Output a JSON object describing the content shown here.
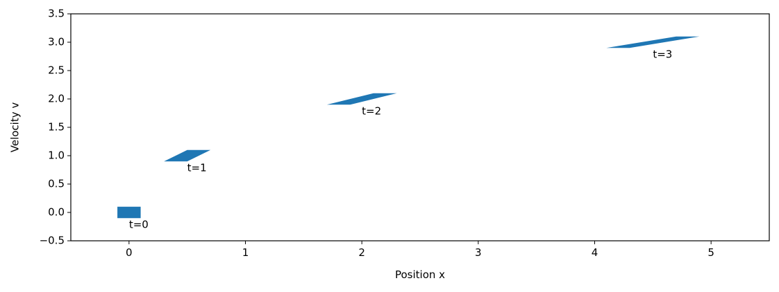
{
  "chart_data": {
    "type": "area",
    "title": "",
    "xlabel": "Position x",
    "ylabel": "Velocity v",
    "xlim": [
      -0.5,
      5.5
    ],
    "ylim": [
      -0.5,
      3.5
    ],
    "xticks": [
      0,
      1,
      2,
      3,
      4,
      5
    ],
    "xtick_labels": [
      "0",
      "1",
      "2",
      "3",
      "4",
      "5"
    ],
    "yticks": [
      -0.5,
      0.0,
      0.5,
      1.0,
      1.5,
      2.0,
      2.5,
      3.0,
      3.5
    ],
    "ytick_labels": [
      "−0.5",
      "0.0",
      "0.5",
      "1.0",
      "1.5",
      "2.0",
      "2.5",
      "3.0",
      "3.5"
    ],
    "grid": false,
    "color": "#1f77b4",
    "shapes": [
      {
        "label": "t=0",
        "t": 0,
        "vertices": [
          [
            -0.1,
            -0.1
          ],
          [
            0.1,
            -0.1
          ],
          [
            0.1,
            0.1
          ],
          [
            -0.1,
            0.1
          ]
        ],
        "label_pos": [
          0,
          -0.22
        ]
      },
      {
        "label": "t=1",
        "t": 1,
        "vertices": [
          [
            0.3,
            0.9
          ],
          [
            0.5,
            0.9
          ],
          [
            0.7,
            1.1
          ],
          [
            0.5,
            1.1
          ]
        ],
        "label_pos": [
          0.5,
          0.78
        ]
      },
      {
        "label": "t=2",
        "t": 2,
        "vertices": [
          [
            1.7,
            1.9
          ],
          [
            1.9,
            1.9
          ],
          [
            2.3,
            2.1
          ],
          [
            2.1,
            2.1
          ]
        ],
        "label_pos": [
          2.0,
          1.78
        ]
      },
      {
        "label": "t=3",
        "t": 3,
        "vertices": [
          [
            4.1,
            2.9
          ],
          [
            4.3,
            2.9
          ],
          [
            4.9,
            3.1
          ],
          [
            4.7,
            3.1
          ]
        ],
        "label_pos": [
          4.5,
          2.78
        ]
      }
    ]
  }
}
